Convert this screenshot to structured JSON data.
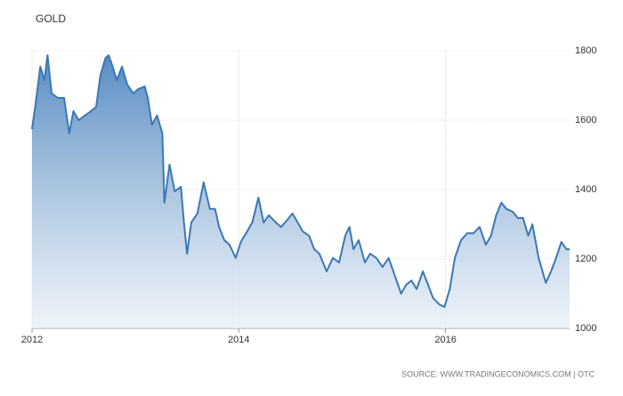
{
  "chart_data": {
    "type": "area",
    "title": "GOLD",
    "source": "SOURCE: WWW.TRADINGECONOMICS.COM | OTC",
    "color": "#3b78b3",
    "grid": true,
    "y_axis_side": "right",
    "x": [
      2012.0,
      2012.03,
      2012.08,
      2012.12,
      2012.15,
      2012.19,
      2012.25,
      2012.31,
      2012.36,
      2012.4,
      2012.45,
      2012.51,
      2012.57,
      2012.62,
      2012.66,
      2012.71,
      2012.74,
      2012.78,
      2012.82,
      2012.87,
      2012.92,
      2012.98,
      2013.03,
      2013.09,
      2013.12,
      2013.16,
      2013.21,
      2013.26,
      2013.28,
      2013.33,
      2013.38,
      2013.44,
      2013.47,
      2013.5,
      2013.54,
      2013.6,
      2013.66,
      2013.72,
      2013.77,
      2013.81,
      2013.86,
      2013.91,
      2013.97,
      2014.02,
      2014.08,
      2014.13,
      2014.19,
      2014.24,
      2014.29,
      2014.36,
      2014.41,
      2014.47,
      2014.52,
      2014.57,
      2014.62,
      2014.68,
      2014.73,
      2014.78,
      2014.85,
      2014.91,
      2014.97,
      2015.03,
      2015.07,
      2015.11,
      2015.16,
      2015.22,
      2015.27,
      2015.33,
      2015.39,
      2015.45,
      2015.51,
      2015.57,
      2015.62,
      2015.67,
      2015.72,
      2015.78,
      2015.83,
      2015.88,
      2015.94,
      2015.99,
      2016.04,
      2016.09,
      2016.15,
      2016.21,
      2016.27,
      2016.33,
      2016.39,
      2016.44,
      2016.49,
      2016.54,
      2016.59,
      2016.65,
      2016.7,
      2016.75,
      2016.8,
      2016.84,
      2016.9,
      2016.97,
      2017.02,
      2017.07,
      2017.12,
      2017.17,
      2017.2
    ],
    "values": [
      1574,
      1638,
      1754,
      1715,
      1787,
      1677,
      1664,
      1664,
      1562,
      1626,
      1600,
      1613,
      1626,
      1638,
      1728,
      1779,
      1787,
      1754,
      1715,
      1754,
      1703,
      1677,
      1690,
      1697,
      1664,
      1587,
      1613,
      1562,
      1362,
      1472,
      1395,
      1408,
      1305,
      1215,
      1305,
      1331,
      1421,
      1344,
      1344,
      1292,
      1254,
      1241,
      1203,
      1249,
      1279,
      1305,
      1377,
      1305,
      1326,
      1305,
      1292,
      1313,
      1331,
      1305,
      1279,
      1267,
      1228,
      1215,
      1164,
      1203,
      1190,
      1267,
      1292,
      1228,
      1254,
      1190,
      1215,
      1203,
      1177,
      1203,
      1151,
      1100,
      1126,
      1138,
      1113,
      1164,
      1126,
      1087,
      1069,
      1062,
      1113,
      1203,
      1254,
      1274,
      1274,
      1292,
      1241,
      1267,
      1326,
      1362,
      1344,
      1336,
      1318,
      1318,
      1267,
      1300,
      1203,
      1131,
      1164,
      1203,
      1249,
      1228,
      1228
    ],
    "xlim": [
      2012,
      2017.2
    ],
    "xticks": [
      2012,
      2014,
      2016
    ],
    "ylim": [
      1000,
      1800
    ],
    "yticks": [
      1000,
      1200,
      1400,
      1600,
      1800
    ]
  }
}
